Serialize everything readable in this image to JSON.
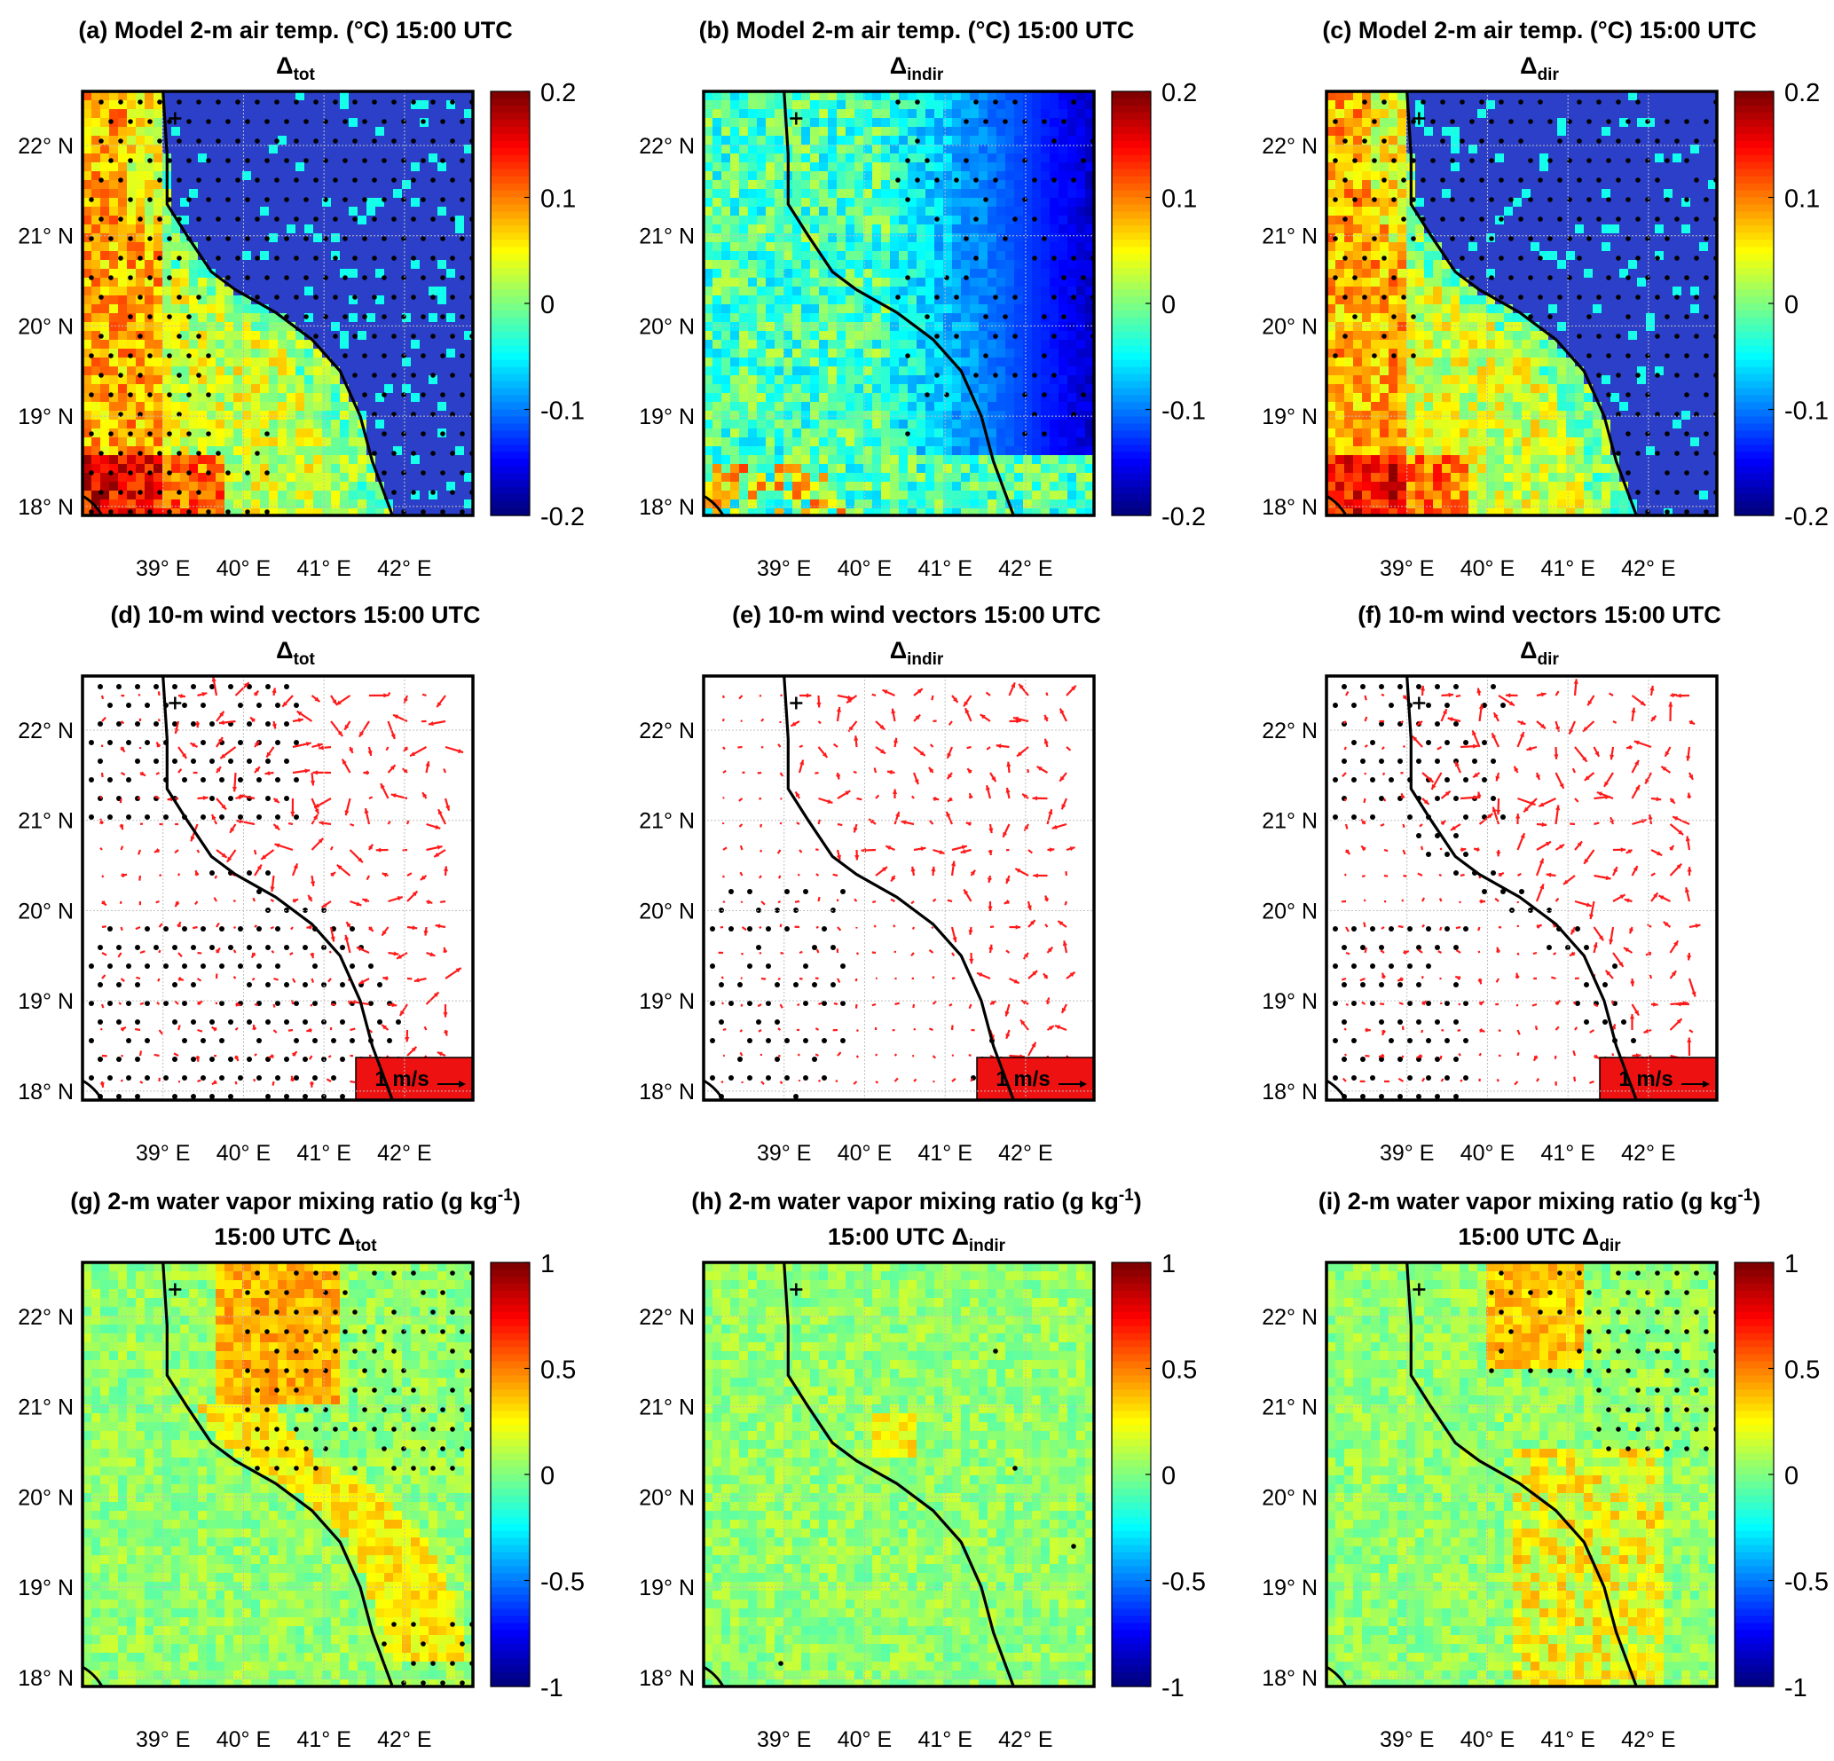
{
  "colors": {
    "land_blue": "#2b3fc8",
    "arrow_red": "#ff1a1a",
    "scale_box": "#ee1111",
    "coast": "#000000"
  },
  "coastline_deg": [
    [
      39.0,
      22.6
    ],
    [
      39.05,
      21.9
    ],
    [
      39.05,
      21.35
    ],
    [
      39.3,
      21.0
    ],
    [
      39.6,
      20.6
    ],
    [
      39.9,
      20.4
    ],
    [
      40.4,
      20.15
    ],
    [
      40.85,
      19.85
    ],
    [
      41.2,
      19.5
    ],
    [
      41.45,
      19.0
    ],
    [
      41.6,
      18.5
    ],
    [
      41.85,
      17.9
    ]
  ],
  "tick_labels": {
    "lat": [
      "22° N",
      "21° N",
      "20° N",
      "19° N",
      "18° N"
    ],
    "lon": [
      "39° E",
      "40° E",
      "41° E",
      "42° E"
    ]
  },
  "rows": [
    {
      "type": "temperature",
      "colorbar": {
        "max_label": "0.2",
        "ticks": [
          "0.2",
          "0.1",
          "0",
          "-0.1",
          "-0.2"
        ]
      },
      "panels": [
        {
          "title": "(a) Model 2-m air temp. (°C) 15:00 UTC",
          "subtitle": "Δtot",
          "subtitle_line": "",
          "sub": "tot",
          "variant": "tot"
        },
        {
          "title": "(b) Model 2-m air temp. (°C) 15:00 UTC",
          "subtitle": "Δindir",
          "subtitle_line": "",
          "sub": "indir",
          "variant": "indir"
        },
        {
          "title": "(c) Model 2-m air temp. (°C) 15:00 UTC",
          "subtitle": "Δdir",
          "subtitle_line": "",
          "sub": "dir",
          "variant": "dir"
        }
      ]
    },
    {
      "type": "wind",
      "scale_label": "1 m/s",
      "panels": [
        {
          "title": "(d) 10-m wind vectors 15:00 UTC",
          "subtitle": "Δtot",
          "sub": "tot",
          "variant": "tot"
        },
        {
          "title": "(e) 10-m wind vectors 15:00 UTC",
          "subtitle": "Δindir",
          "sub": "indir",
          "variant": "indir"
        },
        {
          "title": "(f) 10-m wind vectors 15:00 UTC",
          "subtitle": "Δdir",
          "sub": "dir",
          "variant": "dir"
        }
      ]
    },
    {
      "type": "vapor",
      "colorbar": {
        "ticks": [
          "1",
          "0.5",
          "0",
          "-0.5",
          "-1"
        ]
      },
      "panels": [
        {
          "title": "(g) 2-m water vapor mixing ratio (g kg-1)",
          "subtitle": "15:00 UTC Δtot",
          "sub": "tot",
          "variant": "tot"
        },
        {
          "title": "(h) 2-m water vapor mixing ratio (g kg-1)",
          "subtitle": "15:00 UTC Δindir",
          "sub": "indir",
          "variant": "indir"
        },
        {
          "title": "(i) 2-m water vapor mixing ratio (g kg-1)",
          "subtitle": "15:00 UTC Δdir",
          "sub": "dir",
          "variant": "dir"
        }
      ]
    }
  ]
}
